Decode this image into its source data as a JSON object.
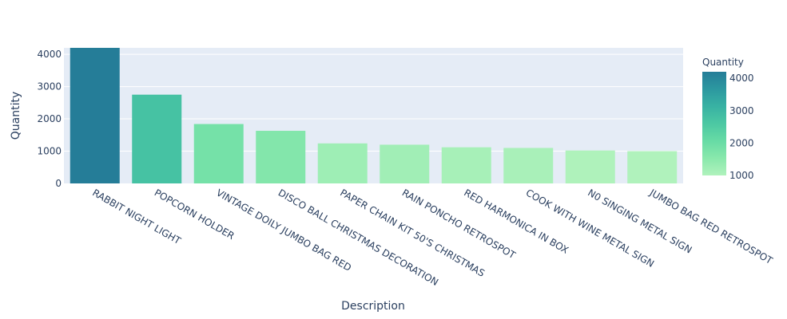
{
  "chart_data": {
    "type": "bar",
    "xlabel": "Description",
    "ylabel": "Quantity",
    "ylim": [
      0,
      4200
    ],
    "yticks": [
      0,
      1000,
      2000,
      3000,
      4000
    ],
    "grid": true,
    "categories": [
      "RABBIT NIGHT LIGHT",
      "POPCORN HOLDER",
      "VINTAGE DOILY JUMBO BAG RED",
      "DISCO BALL CHRISTMAS DECORATION",
      "PAPER CHAIN KIT 50'S CHRISTMAS",
      "RAIN PONCHO RETROSPOT",
      "RED  HARMONICA IN BOX",
      "COOK WITH WINE METAL SIGN",
      "N0 SINGING METAL SIGN",
      "JUMBO BAG RED RETROSPOT"
    ],
    "values": [
      4200,
      2750,
      1840,
      1630,
      1240,
      1200,
      1120,
      1100,
      1020,
      1000
    ],
    "colorbar": {
      "title": "Quantity",
      "ticks": [
        1000,
        2000,
        3000,
        4000
      ],
      "range": [
        1000,
        4200
      ],
      "colors": [
        "#b0f2bc",
        "#89e8ac",
        "#67dba5",
        "#4cc8a3",
        "#38b2a3",
        "#2c98a0",
        "#257d98"
      ]
    },
    "plot_background": "#e5ecf6"
  }
}
